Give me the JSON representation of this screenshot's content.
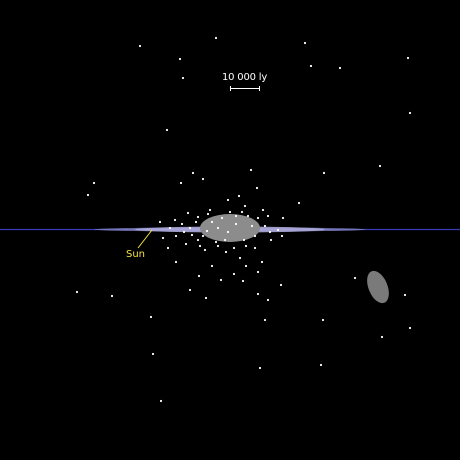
{
  "scale": {
    "label": "10 000 ly"
  },
  "sun": {
    "label": "Sun"
  },
  "colors": {
    "background": "#000000",
    "galactic_plane": "#3a3ab4",
    "disk": "#aaa8d8",
    "bulge": "#8c8c8c",
    "stars": "#ffffff",
    "sun_marker": "#f5e442",
    "satellite_galaxy": "#7a7a7a"
  }
}
